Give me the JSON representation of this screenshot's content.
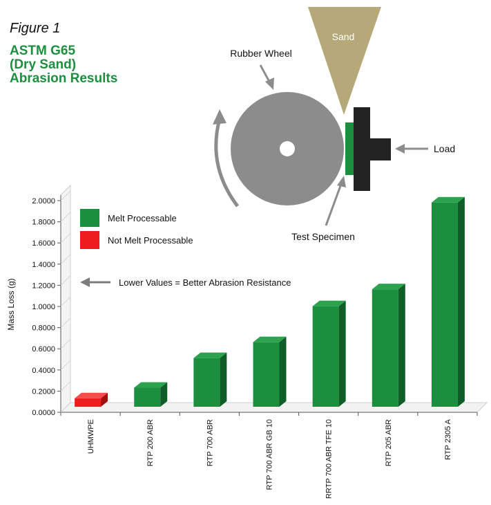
{
  "figure_label": "Figure 1",
  "title_lines": [
    "ASTM G65",
    "(Dry Sand)",
    "Abrasion Results"
  ],
  "diagram": {
    "sand_label": "Sand",
    "wheel_label": "Rubber Wheel",
    "load_label": "Load",
    "specimen_label": "Test Specimen"
  },
  "legend": {
    "items": [
      {
        "label": "Melt Processable",
        "color": "#1c8f3f"
      },
      {
        "label": "Not Melt Processable",
        "color": "#ee1c1c"
      }
    ]
  },
  "annotation": "Lower Values = Better Abrasion Resistance",
  "colors": {
    "green": "#1c8f3f",
    "green_side": "#0f5e27",
    "green_top": "#2ca24f",
    "red": "#ee1c1c",
    "red_side": "#a40f0f",
    "red_top": "#f44b4b",
    "sand": "#b5a97a",
    "wheel": "#8c8c8c",
    "specimen": "#1c8f3f",
    "holder": "#222222"
  },
  "chart_data": {
    "type": "bar",
    "ylabel": "Mass Loss (g)",
    "xlabel": "",
    "ylim": [
      0,
      2.0
    ],
    "yticks": [
      "0.0000",
      "0.2000",
      "0.4000",
      "0.6000",
      "0.8000",
      "1.0000",
      "1.2000",
      "1.4000",
      "1.6000",
      "1.8000",
      "2.0000"
    ],
    "categories": [
      "UHMWPE",
      "RTP 200 ABR",
      "RTP 700 ABR",
      "RTP 700 ABR GB 10",
      "RRTP 700 ABR TFE 10",
      "RTP 205 ABR",
      "RTP 2305 A"
    ],
    "values": [
      0.08,
      0.18,
      0.46,
      0.61,
      0.95,
      1.11,
      1.93
    ],
    "melt_processable": [
      false,
      true,
      true,
      true,
      true,
      true,
      true
    ],
    "legend_placement": "top-left",
    "grid": false
  }
}
